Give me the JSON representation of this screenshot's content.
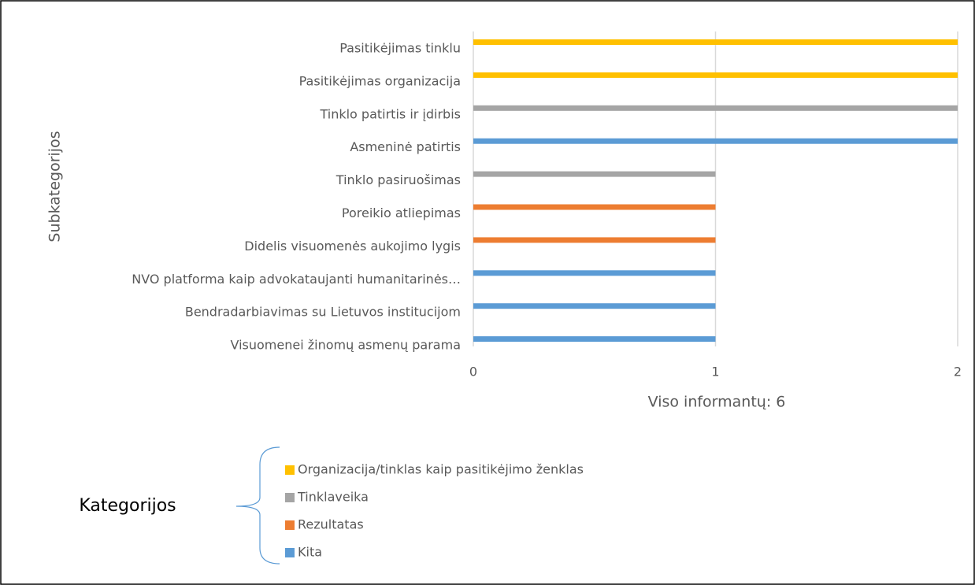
{
  "chart_data": {
    "type": "barh",
    "categories": [
      "Pasitikėjimas tinklu",
      "Pasitikėjimas organizacija",
      "Tinklo patirtis ir įdirbis",
      "Asmeninė patirtis",
      "Tinklo pasiruošimas",
      "Poreikio atliepimas",
      "Didelis visuomenės aukojimo lygis",
      "NVO platforma kaip advokataujanti humanitarinės…",
      "Bendradarbiavimas su Lietuvos institucijom",
      "Visuomenei žinomų asmenų parama"
    ],
    "series": [
      {
        "name": "Organizacija/tinklas kaip pasitikėjimo ženklas",
        "color": "#ffc000",
        "values": [
          2,
          2,
          null,
          null,
          null,
          null,
          null,
          null,
          null,
          null
        ]
      },
      {
        "name": "Tinklaveika",
        "color": "#a5a5a5",
        "values": [
          null,
          null,
          2,
          null,
          1,
          null,
          null,
          null,
          null,
          null
        ]
      },
      {
        "name": "Rezultatas",
        "color": "#ed7d31",
        "values": [
          null,
          null,
          null,
          null,
          null,
          1,
          1,
          null,
          null,
          null
        ]
      },
      {
        "name": "Kita",
        "color": "#5b9bd5",
        "values": [
          null,
          null,
          null,
          2,
          null,
          null,
          null,
          1,
          1,
          1
        ]
      }
    ],
    "xlim": [
      0,
      2
    ],
    "xticks": [
      0,
      1,
      2
    ],
    "xlabel": "Viso informantų: 6",
    "ylabel": "Subkategorijos",
    "legend_title": "Kategorijos",
    "grid": true
  }
}
